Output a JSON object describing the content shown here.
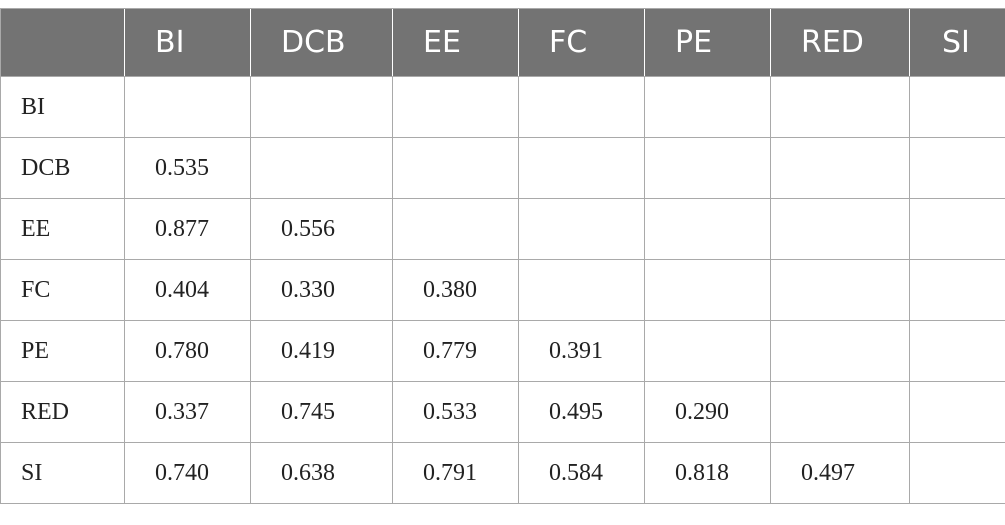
{
  "table": {
    "columns": [
      "",
      "BI",
      "DCB",
      "EE",
      "FC",
      "PE",
      "RED",
      "SI"
    ],
    "rows": [
      {
        "label": "BI",
        "cells": [
          "",
          "",
          "",
          "",
          "",
          "",
          ""
        ]
      },
      {
        "label": "DCB",
        "cells": [
          "0.535",
          "",
          "",
          "",
          "",
          "",
          ""
        ]
      },
      {
        "label": "EE",
        "cells": [
          "0.877",
          "0.556",
          "",
          "",
          "",
          "",
          ""
        ]
      },
      {
        "label": "FC",
        "cells": [
          "0.404",
          "0.330",
          "0.380",
          "",
          "",
          "",
          ""
        ]
      },
      {
        "label": "PE",
        "cells": [
          "0.780",
          "0.419",
          "0.779",
          "0.391",
          "",
          "",
          ""
        ]
      },
      {
        "label": "RED",
        "cells": [
          "0.337",
          "0.745",
          "0.533",
          "0.495",
          "0.290",
          "",
          ""
        ]
      },
      {
        "label": "SI",
        "cells": [
          "0.740",
          "0.638",
          "0.791",
          "0.584",
          "0.818",
          "0.497",
          ""
        ]
      }
    ]
  },
  "colors": {
    "header_background": "#737373",
    "header_text": "#ffffff",
    "grid_line": "#a9a9a9",
    "body_text": "#222222"
  }
}
